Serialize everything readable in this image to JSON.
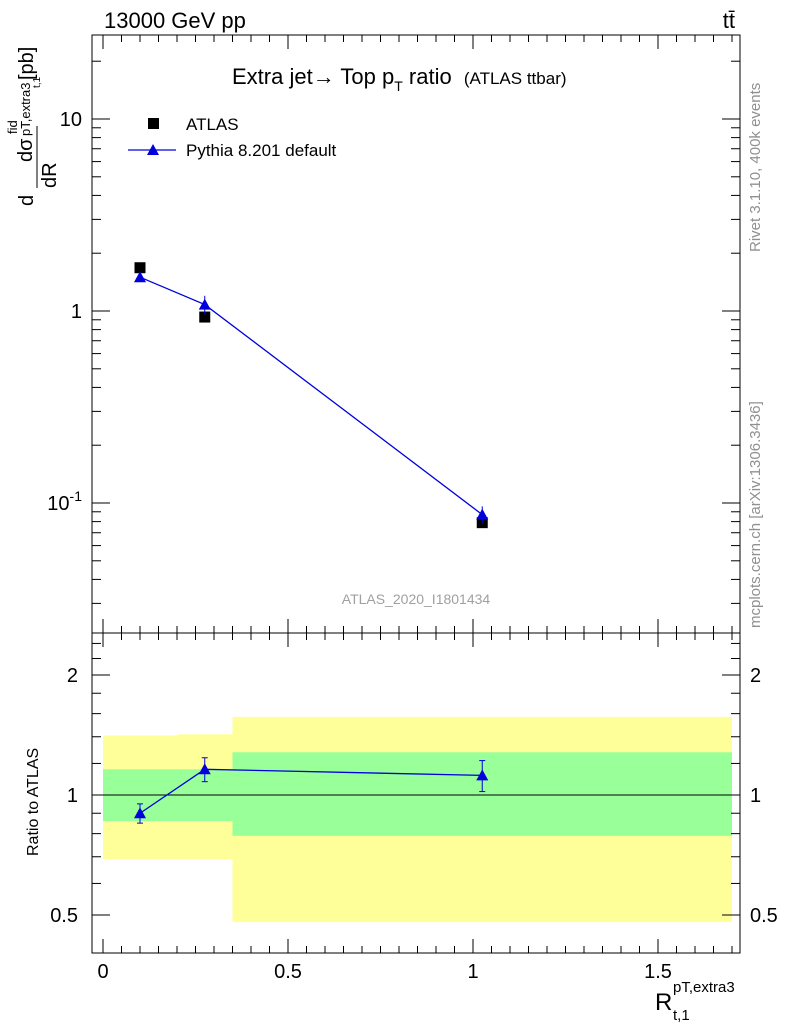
{
  "header": {
    "left": "13000 GeV pp",
    "right": "tt̄"
  },
  "title": {
    "main_prefix": "Extra jet",
    "main_arrow": "→",
    "main_mid": " Top p",
    "main_sub": "T",
    "main_suffix": " ratio",
    "paren": "(ATLAS ttbar)"
  },
  "side_labels": {
    "rivet": "Rivet 3.1.10,  400k events",
    "mcplots": "mcplots.cern.ch [arXiv:1306.3436]"
  },
  "watermark": "ATLAS_2020_I1801434",
  "chart_data": [
    {
      "type": "scatter",
      "panel": "main",
      "ylabel": "d dσ^fid / dR [pb]",
      "ylabel_parts": {
        "d1": "d",
        "dsigma": "dσ",
        "fid": "fid",
        "r_sub": "pT,extra3",
        "r_subsub": "t,1",
        "dR": "dR",
        "unit": "[pb]"
      },
      "xlim": [
        -0.05,
        1.75
      ],
      "ylim": [
        0.025,
        28
      ],
      "yscale": "log",
      "x_ticks": [
        "0",
        "0.5",
        "1",
        "1.5"
      ],
      "y_ticks": [
        "10",
        "1",
        "10^-1"
      ],
      "legend": "top-left",
      "series": [
        {
          "name": "ATLAS",
          "marker": "square",
          "color": "#000000",
          "x": [
            0.1,
            0.275,
            1.025
          ],
          "y": [
            1.68,
            0.93,
            0.079
          ],
          "yerr": [
            0.04,
            0.03,
            0.004
          ]
        },
        {
          "name": "Pythia 8.201 default",
          "marker": "triangle",
          "color": "#0000dd",
          "x": [
            0.1,
            0.275,
            1.025
          ],
          "y": [
            1.5,
            1.08,
            0.087
          ],
          "yerr": [
            0.07,
            0.12,
            0.009
          ]
        }
      ]
    },
    {
      "type": "line",
      "panel": "ratio",
      "ylabel": "Ratio to ATLAS",
      "xlabel_parts": {
        "R": "R",
        "sup": "pT,extra3",
        "sub": "t,1"
      },
      "xlim": [
        -0.05,
        1.75
      ],
      "ylim": [
        0.4,
        2.4
      ],
      "y_ticks": [
        "2",
        "1",
        "0.5"
      ],
      "x_ticks": [
        "0",
        "0.5",
        "1",
        "1.5"
      ],
      "bands": [
        {
          "x0": 0.0,
          "x1": 0.2,
          "inner": [
            0.86,
            1.16
          ],
          "outer": [
            0.69,
            1.41
          ]
        },
        {
          "x0": 0.2,
          "x1": 0.35,
          "inner": [
            0.86,
            1.16
          ],
          "outer": [
            0.69,
            1.42
          ]
        },
        {
          "x0": 0.35,
          "x1": 1.7,
          "inner": [
            0.79,
            1.28
          ],
          "outer": [
            0.48,
            1.57
          ]
        }
      ],
      "band_colors": {
        "outer": "#ffff99",
        "inner": "#99ff99"
      },
      "series": [
        {
          "name": "Pythia 8.201 default",
          "color": "#0000dd",
          "x": [
            0.1,
            0.275,
            1.025
          ],
          "y": [
            0.9,
            1.16,
            1.12
          ],
          "yerr": [
            0.05,
            0.08,
            0.1
          ]
        }
      ]
    }
  ]
}
